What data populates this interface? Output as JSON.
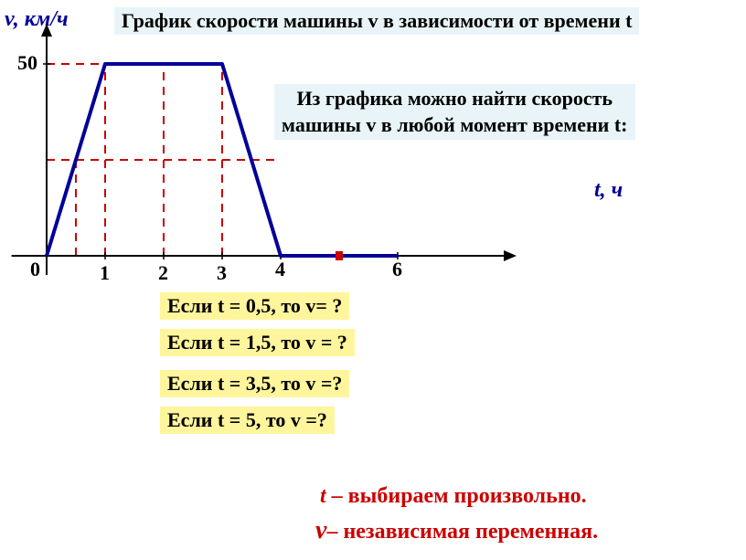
{
  "title": "График скорости машины v в зависимости от времени t",
  "subtitle_l1": "Из графика можно найти скорость",
  "subtitle_l2": "машины v в любой момент времени t:",
  "y_axis_label": "v, км/ч",
  "x_axis_label": "t, ч",
  "chart": {
    "type": "line",
    "xlim": [
      0,
      8
    ],
    "ylim": [
      0,
      60
    ],
    "x_ticks": [
      0,
      1,
      2,
      3,
      4,
      6
    ],
    "y_ticks": [
      50
    ],
    "x_origin": 51,
    "y_origin": 280,
    "x_scale": 64,
    "y_scale": 4.2,
    "axis_color": "#000000",
    "axis_width": 2,
    "line_color": "#000099",
    "line_width": 4,
    "dash_color": "#cc0000",
    "dash_width": 2,
    "poly_points": [
      [
        0,
        0
      ],
      [
        1,
        50
      ],
      [
        3,
        50
      ],
      [
        4,
        0
      ],
      [
        6,
        0
      ]
    ],
    "dash_segments": [
      [
        [
          0,
          50
        ],
        [
          3,
          50
        ]
      ],
      [
        [
          1,
          0
        ],
        [
          1,
          50
        ]
      ],
      [
        [
          2,
          0
        ],
        [
          2,
          50
        ]
      ],
      [
        [
          3,
          0
        ],
        [
          3,
          50
        ]
      ],
      [
        [
          0,
          25
        ],
        [
          0.5,
          25
        ]
      ],
      [
        [
          0.5,
          0
        ],
        [
          0.5,
          25
        ]
      ],
      [
        [
          0.5,
          25
        ],
        [
          4,
          25
        ]
      ]
    ],
    "red_marker": [
      5,
      0
    ]
  },
  "q1": "Если t = 0,5, то v= ?",
  "q2": "Если t = 1,5, то v = ?",
  "q3": "Если t = 3,5, то v =?",
  "q4": "Если t = 5, то v =?",
  "foot1_var": "t",
  "foot1_rest": " – выбираем произвольно.",
  "foot2_var": "v",
  "foot2_rest": "– независимая переменная."
}
